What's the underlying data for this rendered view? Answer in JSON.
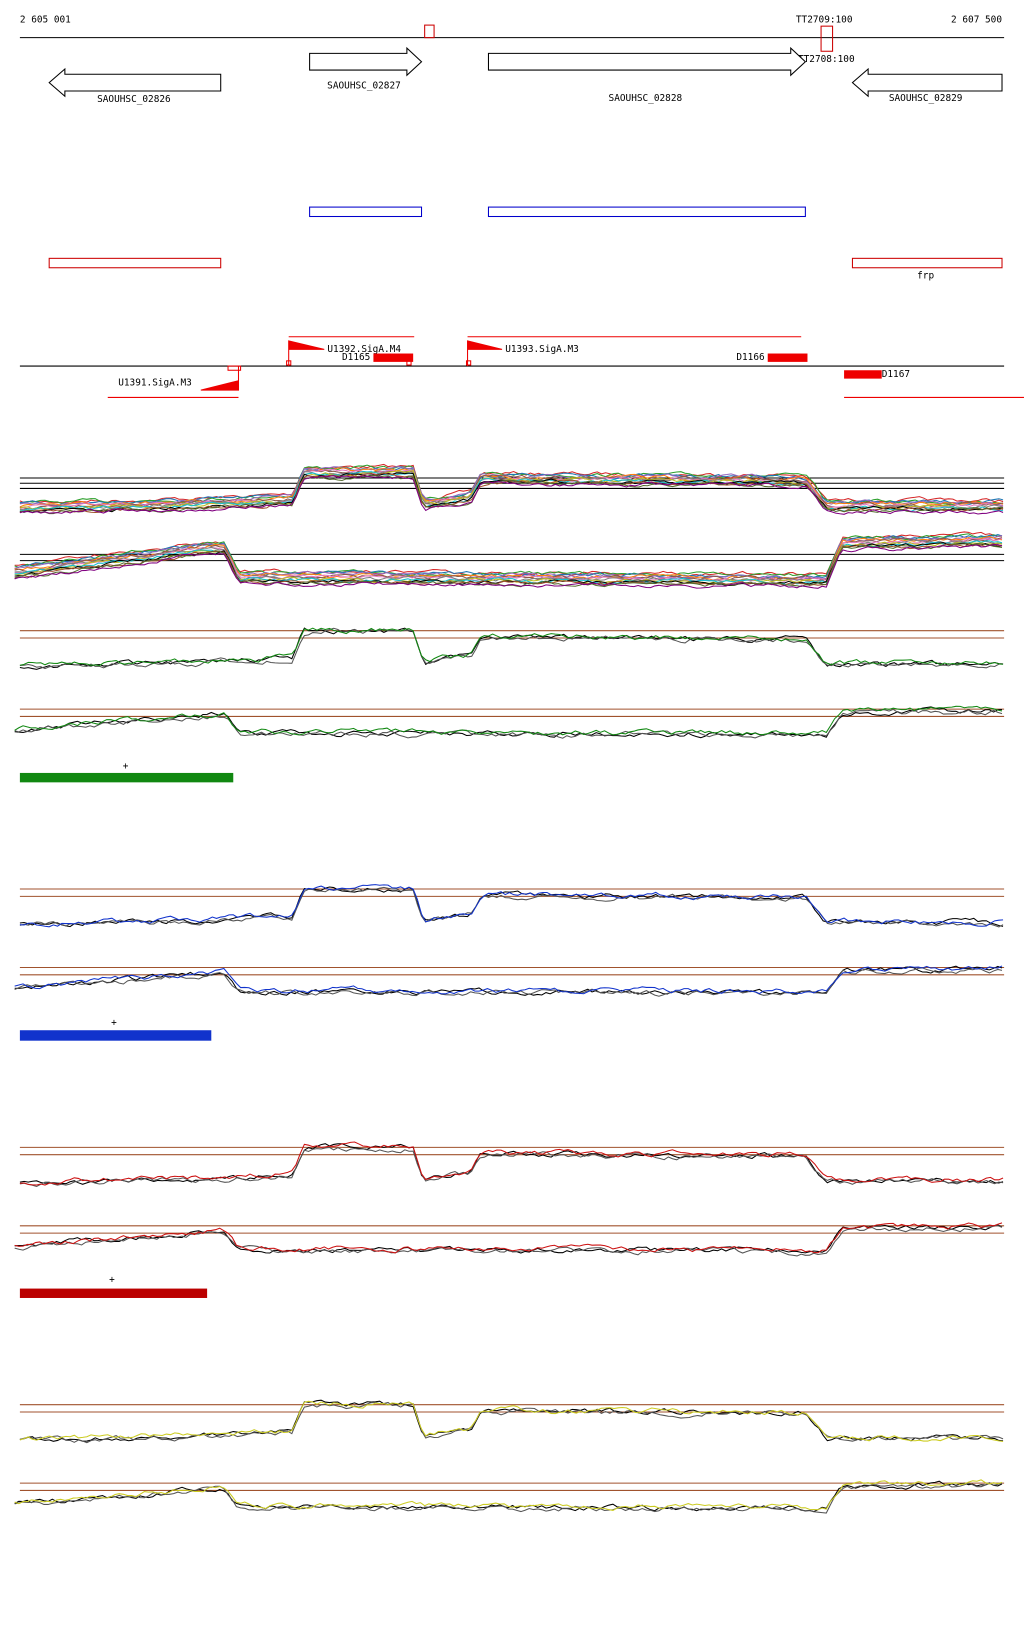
{
  "ruler": {
    "start": "2 605 001",
    "end": "2 607 500",
    "terminators": [
      "TT2709:100",
      "TT2708:100"
    ]
  },
  "genes": [
    {
      "label": "SAOUHSC_02826"
    },
    {
      "label": "SAOUHSC_02827"
    },
    {
      "label": "SAOUHSC_02828"
    },
    {
      "label": "SAOUHSC_02829"
    }
  ],
  "annotations": {
    "operon_label": "frp"
  },
  "promoters": [
    {
      "label": "U1392.SigA.M4"
    },
    {
      "label": "U1393.SigA.M3"
    },
    {
      "label": "U1391.SigA.M3"
    }
  ],
  "features": [
    "D1165",
    "D1166",
    "D1167"
  ],
  "conditions": [
    {
      "marker": "+"
    },
    {
      "marker": "+"
    },
    {
      "marker": "+"
    }
  ]
}
